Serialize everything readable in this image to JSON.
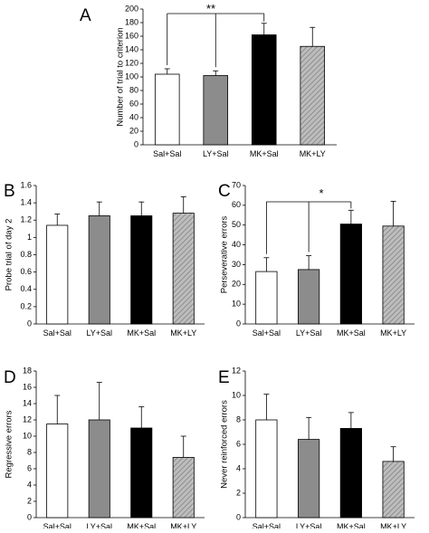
{
  "colors": {
    "white_bar": "#ffffff",
    "gray_bar": "#8c8c8c",
    "black_bar": "#000000",
    "hatch_bar": "#b8b8b8"
  },
  "chart_data": [
    {
      "panel_label": "A",
      "type": "bar",
      "categories": [
        "Sal+Sal",
        "LY+Sal",
        "MK+Sal",
        "MK+LY"
      ],
      "values": [
        104,
        102,
        162,
        145
      ],
      "errors": [
        8,
        7,
        17,
        28
      ],
      "fills": [
        "white",
        "gray",
        "black",
        "hatch"
      ],
      "ylabel": "Number of trial to criterion",
      "ylim": [
        0,
        200
      ],
      "yticks": [
        "0",
        "20",
        "40",
        "60",
        "80",
        "100",
        "120",
        "140",
        "160",
        "180",
        "200"
      ],
      "annotation": "**",
      "grid": false
    },
    {
      "panel_label": "B",
      "type": "bar",
      "categories": [
        "Sal+Sal",
        "LY+Sal",
        "MK+Sal",
        "MK+LY"
      ],
      "values": [
        1.14,
        1.25,
        1.25,
        1.28
      ],
      "errors": [
        0.13,
        0.16,
        0.16,
        0.19
      ],
      "fills": [
        "white",
        "gray",
        "black",
        "hatch"
      ],
      "ylabel": "Probe trial of day 2",
      "ylim": [
        0,
        1.6
      ],
      "yticks": [
        "0",
        "0.2",
        "0.4",
        "0.6",
        "0.8",
        "1",
        "1.2",
        "1.4",
        "1.6"
      ],
      "grid": false
    },
    {
      "panel_label": "C",
      "type": "bar",
      "categories": [
        "Sal+Sal",
        "LY+Sal",
        "MK+Sal",
        "MK+LY"
      ],
      "values": [
        26.5,
        27.5,
        50.5,
        49.5
      ],
      "errors": [
        7,
        7,
        7,
        12.5
      ],
      "fills": [
        "white",
        "gray",
        "black",
        "hatch"
      ],
      "ylabel": "Perseverative errors",
      "ylim": [
        0,
        70
      ],
      "yticks": [
        "0",
        "10",
        "20",
        "30",
        "40",
        "50",
        "60",
        "70"
      ],
      "annotation": "*",
      "grid": false
    },
    {
      "panel_label": "D",
      "type": "bar",
      "categories": [
        "Sal+Sal",
        "LY+Sal",
        "MK+Sal",
        "MK+LY"
      ],
      "values": [
        11.5,
        12.0,
        11.0,
        7.4
      ],
      "errors": [
        3.5,
        4.6,
        2.6,
        2.6
      ],
      "fills": [
        "white",
        "gray",
        "black",
        "hatch"
      ],
      "ylabel": "Regressive errors",
      "ylim": [
        0,
        18
      ],
      "yticks": [
        "0",
        "2",
        "4",
        "6",
        "8",
        "10",
        "12",
        "14",
        "16",
        "18"
      ],
      "grid": false
    },
    {
      "panel_label": "E",
      "type": "bar",
      "categories": [
        "Sal+Sal",
        "LY+Sal",
        "MK+Sal",
        "MK+LY"
      ],
      "values": [
        8.0,
        6.4,
        7.3,
        4.6
      ],
      "errors": [
        2.1,
        1.8,
        1.3,
        1.2
      ],
      "fills": [
        "white",
        "gray",
        "black",
        "hatch"
      ],
      "ylabel": "Never reinforced errors",
      "ylim": [
        0,
        12
      ],
      "yticks": [
        "0",
        "2",
        "4",
        "6",
        "8",
        "10",
        "12"
      ],
      "grid": false
    }
  ]
}
